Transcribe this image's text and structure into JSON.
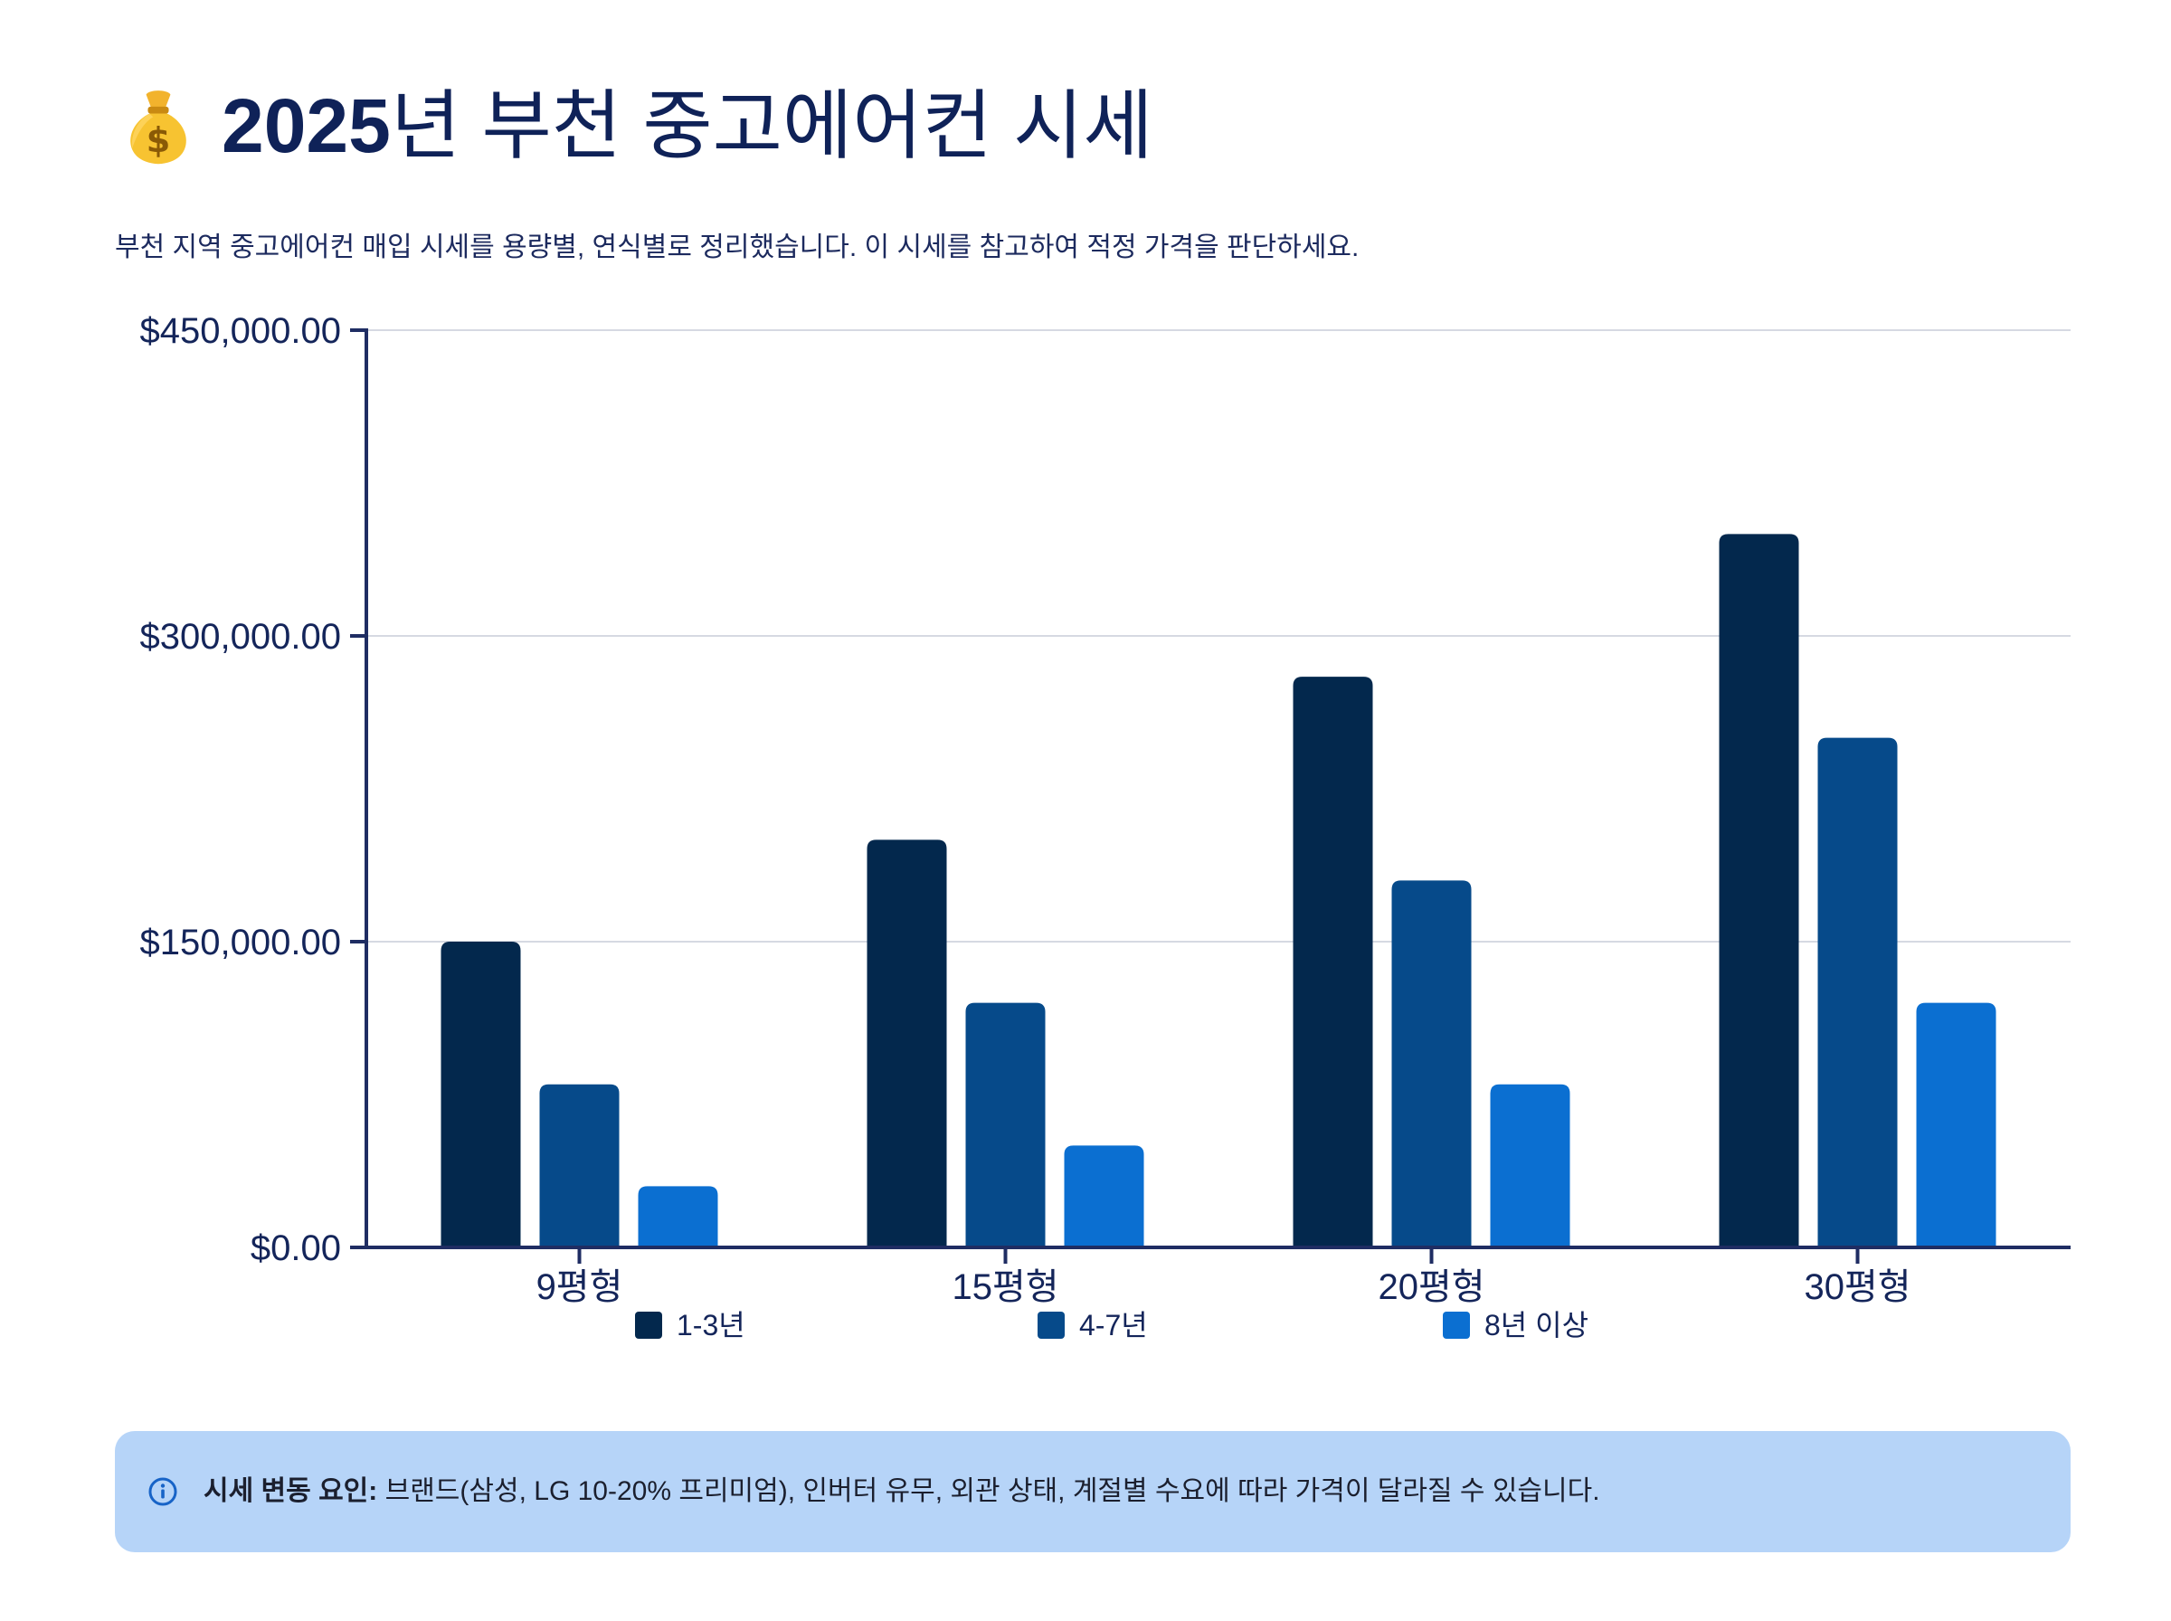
{
  "header": {
    "icon": "money-bag-icon",
    "title_year": "2025",
    "title_rest": "년 부천 중고에어컨 시세",
    "description": "부천 지역 중고에어컨 매입 시세를 용량별, 연식별로 정리했습니다. 이 시세를 참고하여 적정 가격을 판단하세요."
  },
  "chart_data": {
    "type": "bar",
    "categories": [
      "9평형",
      "15평형",
      "20평형",
      "30평형"
    ],
    "series": [
      {
        "name": "1-3년",
        "color": "#03284d",
        "values": [
          150000,
          200000,
          280000,
          350000
        ]
      },
      {
        "name": "4-7년",
        "color": "#064a8a",
        "values": [
          80000,
          120000,
          180000,
          250000
        ]
      },
      {
        "name": "8년 이상",
        "color": "#0b6fd1",
        "values": [
          30000,
          50000,
          80000,
          120000
        ]
      }
    ],
    "y_ticks": [
      0,
      150000,
      300000,
      450000
    ],
    "y_tick_labels": [
      "$0.00",
      "$150,000.00",
      "$300,000.00",
      "$450,000.00"
    ],
    "ylim": [
      0,
      450000
    ],
    "grid": true,
    "legend": "bottom",
    "title": "",
    "xlabel": "",
    "ylabel": ""
  },
  "info": {
    "icon": "info-icon",
    "label": "시세 변동 요인:",
    "text": " 브랜드(삼성, LG 10-20% 프리미엄), 인버터 유무, 외관 상태, 계절별 수요에 따라 가격이 달라질 수 있습니다."
  }
}
